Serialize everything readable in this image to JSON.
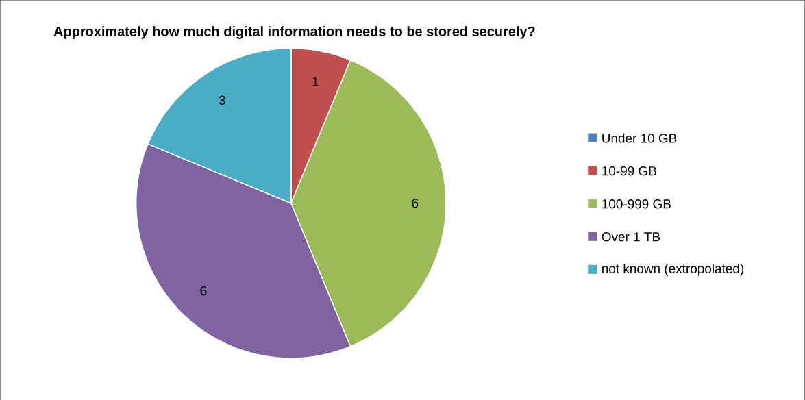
{
  "chart_data": {
    "type": "pie",
    "title": "Approximately how much digital information needs to be stored securely?",
    "categories": [
      "Under 10 GB",
      "10-99 GB",
      "100-999 GB",
      "Over 1 TB",
      "not known (extropolated)"
    ],
    "values": [
      0,
      1,
      6,
      6,
      3
    ],
    "colors": [
      "#4f81bd",
      "#c0504d",
      "#9bbb59",
      "#8064a2",
      "#4bacc6"
    ],
    "value_labels": [
      null,
      "1",
      "6",
      "6",
      "3"
    ],
    "legend": "right"
  }
}
